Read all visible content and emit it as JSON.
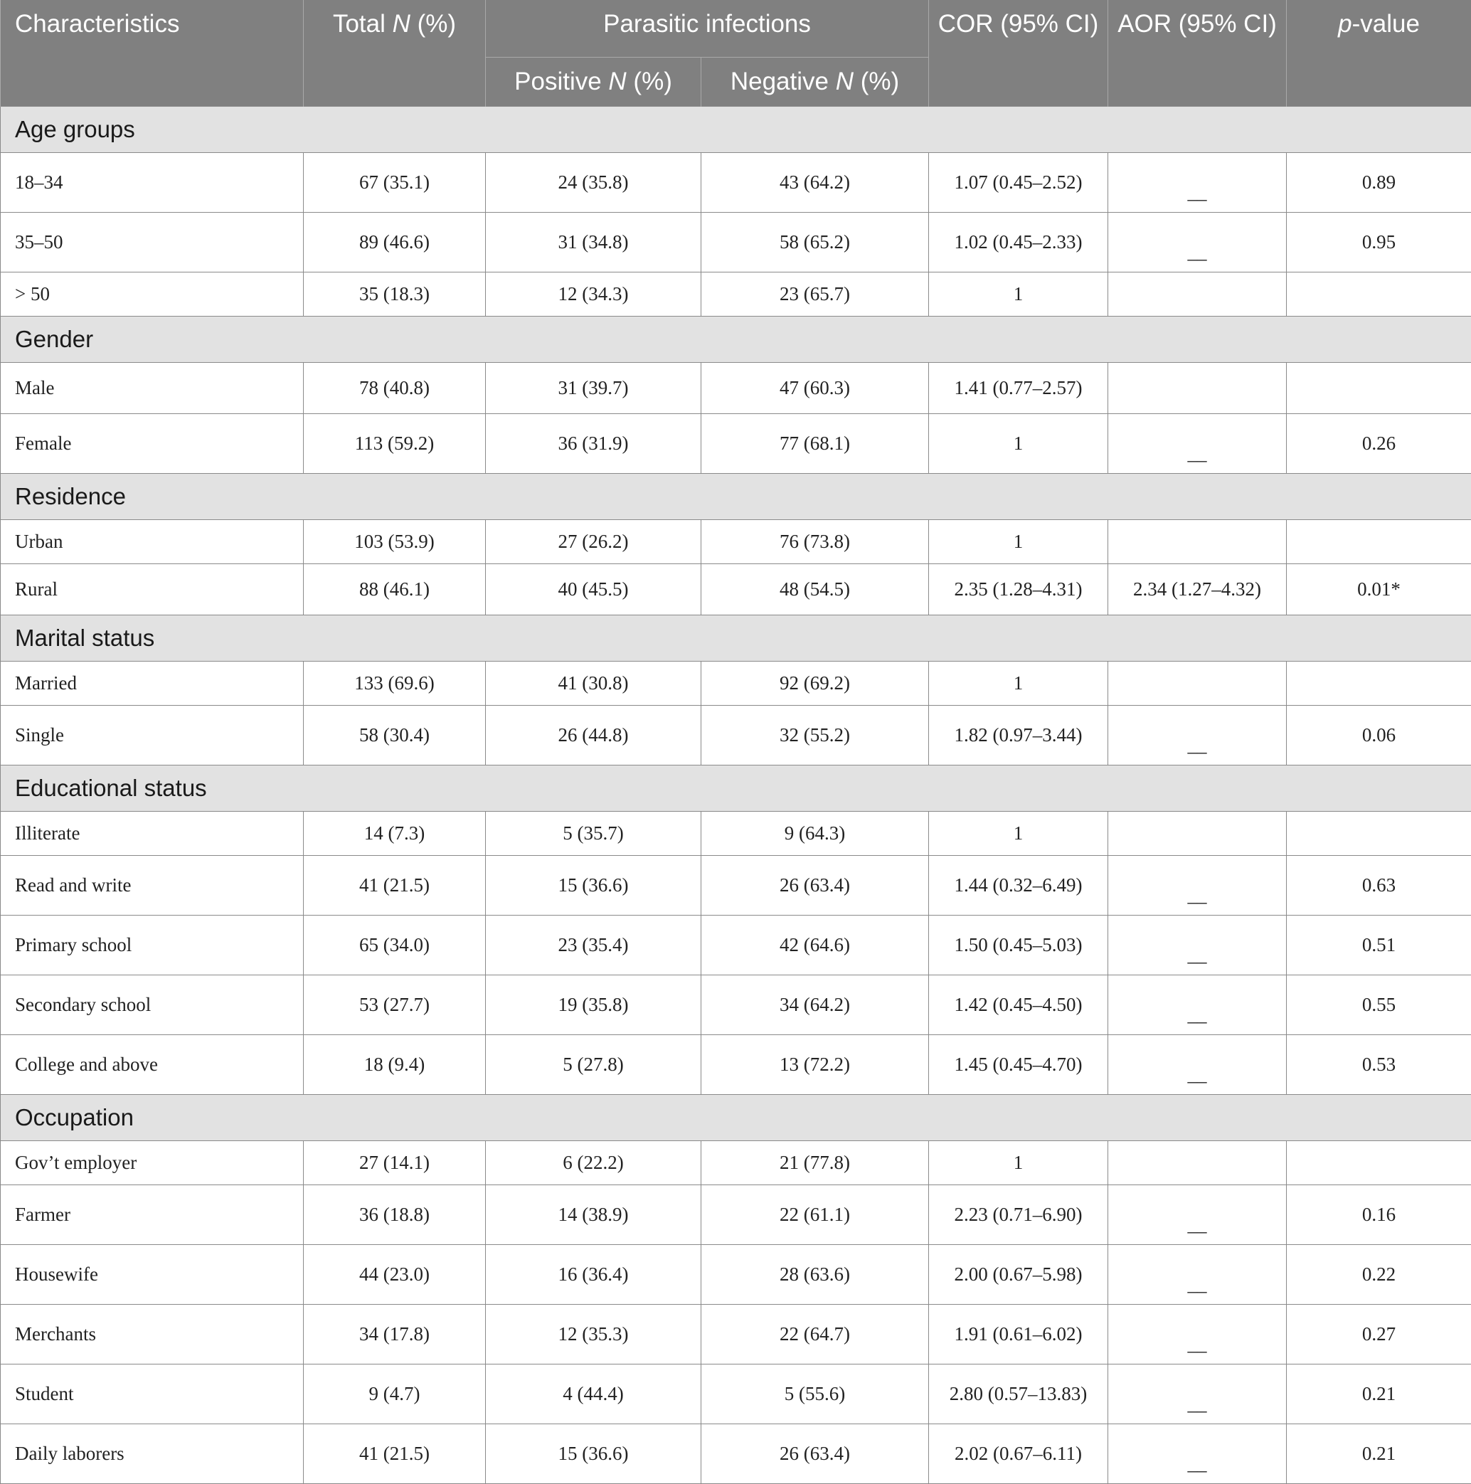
{
  "header": {
    "characteristics": "Characteristics",
    "total_text": "Total ",
    "total_n": "N",
    "total_pct": " (%)",
    "parasitic": "Parasitic infections",
    "positive_text": "Positive ",
    "positive_n": "N",
    "positive_pct": " (%)",
    "negative_text": "Negative ",
    "negative_n": "N",
    "negative_pct": " (%)",
    "cor": "COR (95% CI)",
    "aor": "AOR (95% CI)",
    "p_italic": "p",
    "p_rest": "-value"
  },
  "sections": [
    {
      "title": "Age groups",
      "rows": [
        {
          "label": "18–34",
          "total": "67 (35.1)",
          "pos": "24 (35.8)",
          "neg": "43 (64.2)",
          "cor": "1.07 (0.45–2.52)",
          "aor": "__",
          "p": "0.89"
        },
        {
          "label": "35–50",
          "total": "89 (46.6)",
          "pos": "31 (34.8)",
          "neg": "58 (65.2)",
          "cor": "1.02 (0.45–2.33)",
          "aor": "__",
          "p": "0.95"
        },
        {
          "label": "> 50",
          "total": "35 (18.3)",
          "pos": "12 (34.3)",
          "neg": "23 (65.7)",
          "cor": "1",
          "aor": "",
          "p": ""
        }
      ]
    },
    {
      "title": "Gender",
      "rows": [
        {
          "label": "Male",
          "total": "78 (40.8)",
          "pos": "31 (39.7)",
          "neg": "47 (60.3)",
          "cor": "1.41 (0.77–2.57)",
          "aor": "",
          "p": ""
        },
        {
          "label": "Female",
          "total": "113 (59.2)",
          "pos": "36 (31.9)",
          "neg": "77 (68.1)",
          "cor": "1",
          "aor": "__",
          "p": "0.26"
        }
      ]
    },
    {
      "title": "Residence",
      "rows": [
        {
          "label": "Urban",
          "total": "103 (53.9)",
          "pos": "27 (26.2)",
          "neg": "76 (73.8)",
          "cor": "1",
          "aor": "",
          "p": ""
        },
        {
          "label": "Rural",
          "total": "88 (46.1)",
          "pos": "40 (45.5)",
          "neg": "48 (54.5)",
          "cor": "2.35 (1.28–4.31)",
          "aor": "2.34 (1.27–4.32)",
          "p": "0.01*"
        }
      ]
    },
    {
      "title": "Marital status",
      "rows": [
        {
          "label": "Married",
          "total": "133 (69.6)",
          "pos": "41 (30.8)",
          "neg": "92 (69.2)",
          "cor": "1",
          "aor": "",
          "p": ""
        },
        {
          "label": "Single",
          "total": "58 (30.4)",
          "pos": "26 (44.8)",
          "neg": "32 (55.2)",
          "cor": "1.82 (0.97–3.44)",
          "aor": "__",
          "p": "0.06"
        }
      ]
    },
    {
      "title": "Educational status",
      "rows": [
        {
          "label": "Illiterate",
          "total": "14 (7.3)",
          "pos": "5 (35.7)",
          "neg": "9 (64.3)",
          "cor": "1",
          "aor": "",
          "p": ""
        },
        {
          "label": "Read and write",
          "total": "41 (21.5)",
          "pos": "15 (36.6)",
          "neg": "26 (63.4)",
          "cor": "1.44 (0.32–6.49)",
          "aor": "__",
          "p": "0.63"
        },
        {
          "label": "Primary school",
          "total": "65 (34.0)",
          "pos": "23 (35.4)",
          "neg": "42 (64.6)",
          "cor": "1.50 (0.45–5.03)",
          "aor": "__",
          "p": "0.51"
        },
        {
          "label": "Secondary school",
          "total": "53 (27.7)",
          "pos": "19 (35.8)",
          "neg": "34 (64.2)",
          "cor": "1.42 (0.45–4.50)",
          "aor": "__",
          "p": "0.55"
        },
        {
          "label": "College and above",
          "total": "18 (9.4)",
          "pos": "5 (27.8)",
          "neg": "13 (72.2)",
          "cor": "1.45 (0.45–4.70)",
          "aor": "__",
          "p": "0.53"
        }
      ]
    },
    {
      "title": "Occupation",
      "rows": [
        {
          "label": "Gov’t employer",
          "total": "27 (14.1)",
          "pos": "6 (22.2)",
          "neg": "21 (77.8)",
          "cor": "1",
          "aor": "",
          "p": ""
        },
        {
          "label": "Farmer",
          "total": "36 (18.8)",
          "pos": "14 (38.9)",
          "neg": "22 (61.1)",
          "cor": "2.23 (0.71–6.90)",
          "aor": "__",
          "p": "0.16"
        },
        {
          "label": "Housewife",
          "total": "44 (23.0)",
          "pos": "16 (36.4)",
          "neg": "28 (63.6)",
          "cor": "2.00 (0.67–5.98)",
          "aor": "__",
          "p": "0.22"
        },
        {
          "label": "Merchants",
          "total": "34 (17.8)",
          "pos": "12 (35.3)",
          "neg": "22 (64.7)",
          "cor": "1.91 (0.61–6.02)",
          "aor": "__",
          "p": "0.27"
        },
        {
          "label": "Student",
          "total": "9 (4.7)",
          "pos": "4 (44.4)",
          "neg": "5 (55.6)",
          "cor": "2.80 (0.57–13.83)",
          "aor": "__",
          "p": "0.21"
        },
        {
          "label": "Daily laborers",
          "total": "41 (21.5)",
          "pos": "15 (36.6)",
          "neg": "26 (63.4)",
          "cor": "2.02 (0.67–6.11)",
          "aor": "__",
          "p": "0.21"
        }
      ]
    }
  ]
}
